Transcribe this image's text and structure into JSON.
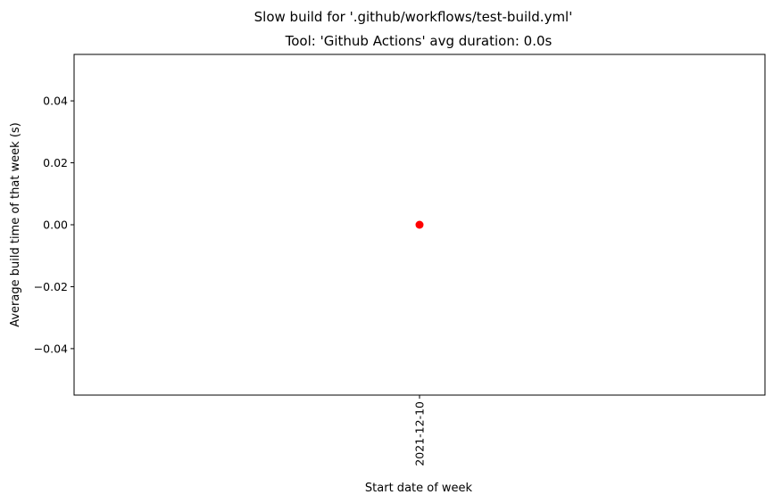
{
  "chart_data": {
    "type": "scatter",
    "suptitle": "Slow build for '.github/workflows/test-build.yml'",
    "title": "Tool: 'Github Actions' avg duration: 0.0s",
    "xlabel": "Start date of week",
    "ylabel": "Average build time of that week (s)",
    "categories": [
      "2021-12-10"
    ],
    "series": [
      {
        "values": [
          0.0
        ],
        "color": "#ff0000"
      }
    ],
    "ylim": [
      -0.055,
      0.055
    ],
    "yticks": [
      -0.04,
      -0.02,
      0.0,
      0.02,
      0.04
    ],
    "ytick_labels": [
      "−0.04",
      "−0.02",
      "0.00",
      "0.02",
      "0.04"
    ],
    "grid": false,
    "legend": "none"
  }
}
